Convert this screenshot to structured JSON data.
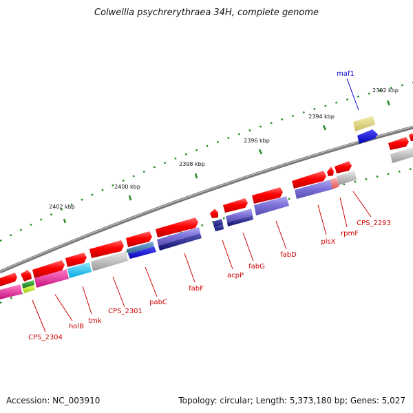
{
  "title": "Colwellia psychrerythraea 34H, complete genome",
  "scale_labels": [
    "2402 kbp",
    "2400 kbp",
    "2398 kbp",
    "2396 kbp",
    "2394 kbp",
    "2392 kbp"
  ],
  "gene_labels": [
    "CPS_2304",
    "holB",
    "tmk",
    "CPS_2301",
    "pabC",
    "fabF",
    "acpP",
    "fabG",
    "fabD",
    "plsX",
    "rpmF",
    "CPS_2293",
    "maf1"
  ],
  "footer": {
    "accession": "Accession: NC_003910",
    "summary": "Topology: circular; Length: 5,373,180 bp; Genes: 5,027"
  },
  "colors": {
    "forward_gene": "#ff0000",
    "backbone": "#888888",
    "tick": "#228b22",
    "label_red": "#cc0000",
    "label_blue": "#0000cc"
  }
}
